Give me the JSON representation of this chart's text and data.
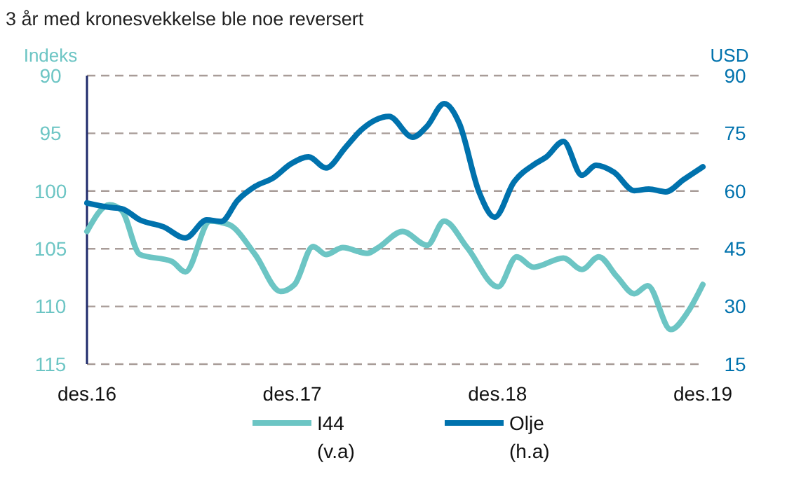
{
  "chart_data": {
    "type": "line",
    "title": "3 år med kronesvekkelse ble noe reversert",
    "ylabel": "Indeks",
    "y2label": "USD",
    "xlim": [
      "2016-12-01",
      "2019-12-01"
    ],
    "xticks": [
      {
        "value": "2016-12-01",
        "label": "des.16"
      },
      {
        "value": "2017-12-01",
        "label": "des.17"
      },
      {
        "value": "2018-12-01",
        "label": "des.18"
      },
      {
        "value": "2019-12-01",
        "label": "des.19"
      }
    ],
    "ylim": [
      115,
      90
    ],
    "yticks": [
      90,
      95,
      100,
      105,
      110,
      115
    ],
    "y2lim": [
      15,
      90
    ],
    "y2ticks": [
      15,
      30,
      45,
      60,
      75,
      90
    ],
    "grid": "y",
    "legend": "bottom",
    "line_style": "solid",
    "marker": "none",
    "series": [
      {
        "name": "I44 (v.a)",
        "color": "#6cc5c4",
        "x": [
          "2016-12-01",
          "2017-01-10",
          "2017-02-01",
          "2017-03-05",
          "2017-05-01",
          "2017-05-25",
          "2017-07-08",
          "2017-08-10",
          "2017-09-26",
          "2017-11-10",
          "2017-12-05",
          "2018-01-07",
          "2018-01-30",
          "2018-03-01",
          "2018-04-13",
          "2018-05-03",
          "2018-06-15",
          "2018-07-29",
          "2018-08-28",
          "2018-10-08",
          "2018-12-02",
          "2019-01-04",
          "2019-02-03",
          "2019-03-28",
          "2019-04-30",
          "2019-05-30",
          "2019-07-01",
          "2019-08-01",
          "2019-08-25",
          "2019-10-05",
          "2019-11-04",
          "2019-12-01"
        ],
        "values": [
          103.5,
          101.2,
          101.7,
          105.5,
          106.1,
          107.0,
          102.6,
          102.9,
          105.5,
          108.7,
          108.1,
          104.8,
          105.5,
          104.9,
          105.4,
          104.9,
          103.5,
          104.7,
          102.6,
          104.9,
          108.3,
          105.7,
          106.6,
          105.8,
          106.8,
          105.7,
          107.4,
          108.9,
          108.2,
          112.0,
          110.5,
          108.1
        ]
      },
      {
        "name": "Olje (h.a)",
        "color": "#0072ad",
        "axis": "y2",
        "x": [
          "2016-12-01",
          "2017-01-08",
          "2017-02-01",
          "2017-03-05",
          "2017-04-16",
          "2017-05-25",
          "2017-07-02",
          "2017-07-28",
          "2017-08-26",
          "2017-09-26",
          "2017-10-28",
          "2017-11-29",
          "2017-12-30",
          "2018-01-30",
          "2018-03-06",
          "2018-04-02",
          "2018-05-22",
          "2018-07-03",
          "2018-07-29",
          "2018-08-28",
          "2018-09-24",
          "2018-10-29",
          "2018-11-26",
          "2018-12-30",
          "2019-02-06",
          "2019-02-26",
          "2019-03-28",
          "2019-04-30",
          "2019-05-25",
          "2019-06-26",
          "2019-08-01",
          "2019-08-27",
          "2019-09-26",
          "2019-10-28",
          "2019-12-01"
        ],
        "values": [
          56.9,
          55.8,
          55.4,
          52.5,
          50.7,
          47.8,
          52.5,
          52.1,
          57.6,
          61.2,
          63.4,
          67.1,
          68.9,
          66.0,
          71.4,
          75.8,
          79.4,
          74.0,
          76.9,
          82.7,
          77.6,
          59.8,
          53.2,
          62.3,
          67.1,
          68.9,
          72.9,
          64.1,
          66.7,
          64.9,
          60.1,
          60.5,
          59.8,
          63.0,
          66.3
        ]
      }
    ]
  }
}
